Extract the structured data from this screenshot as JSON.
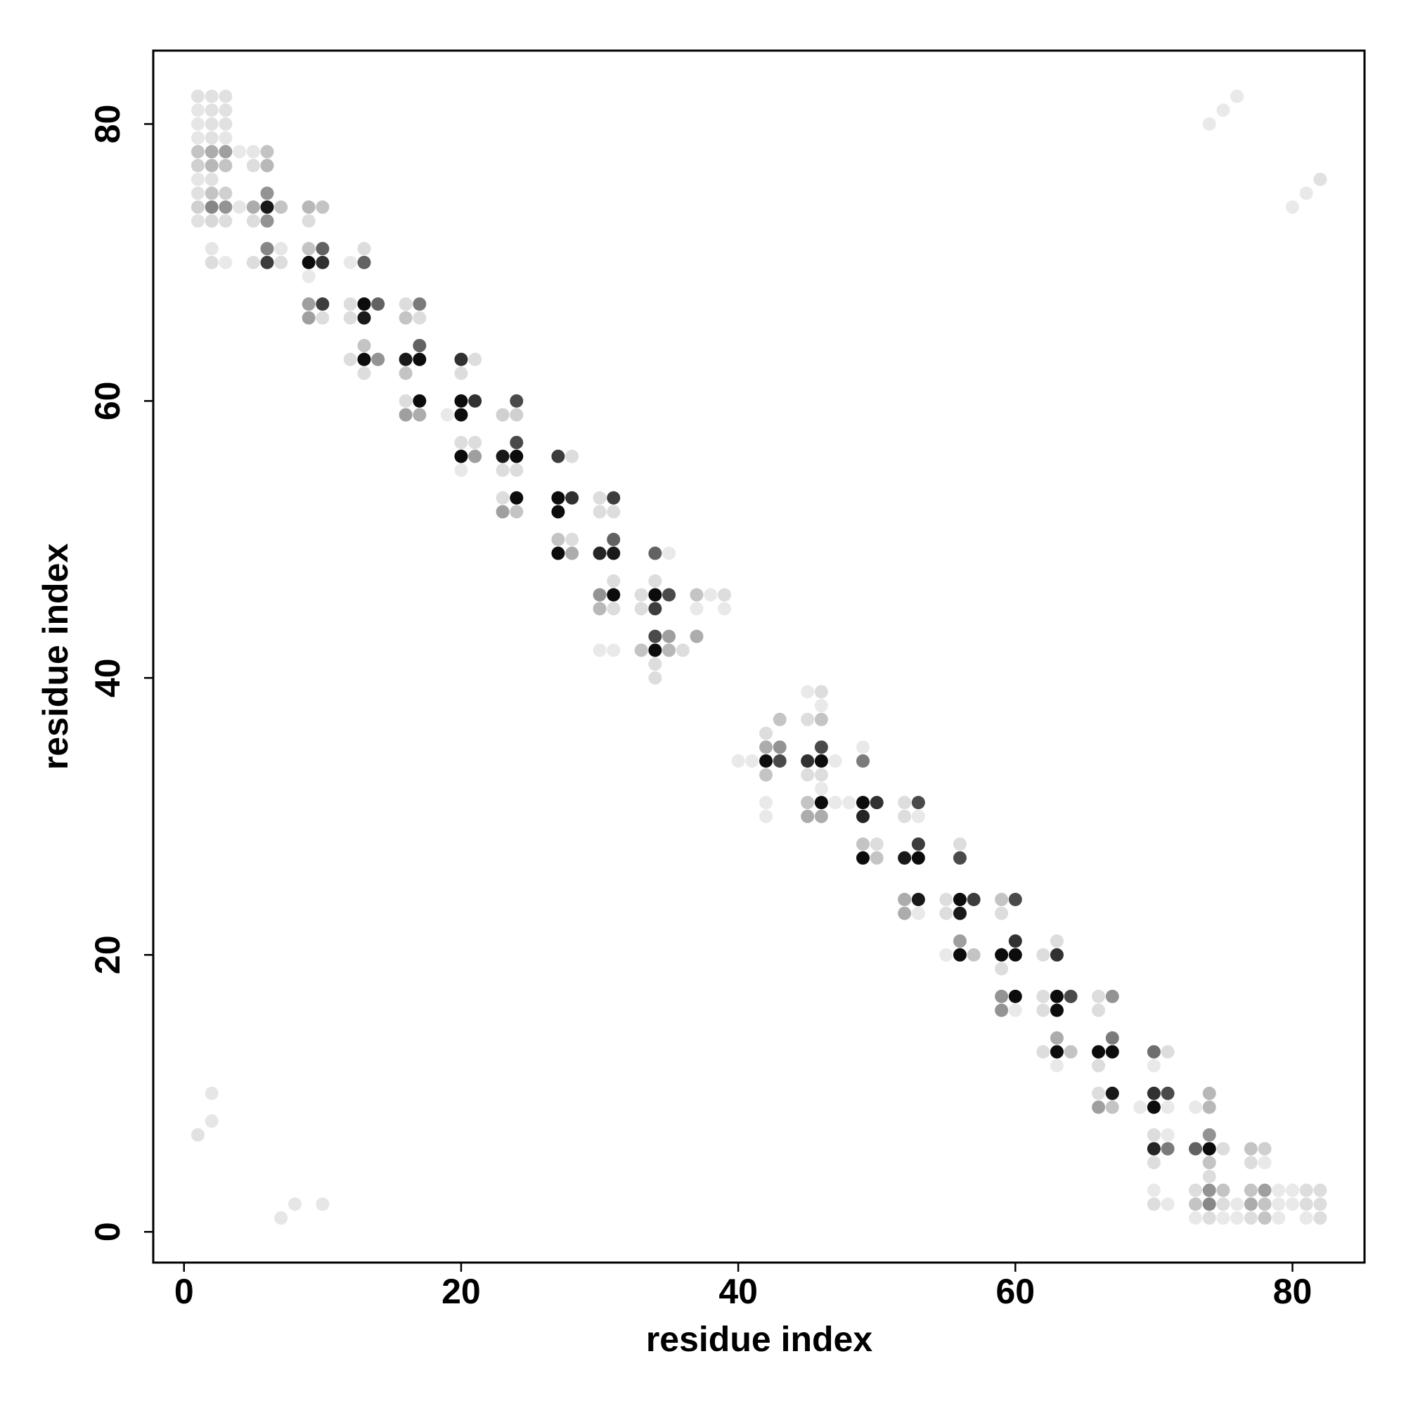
{
  "chart_data": {
    "type": "scatter",
    "xlabel": "residue index",
    "ylabel": "residue index",
    "xlim": [
      -2.22,
      85.2
    ],
    "ylim": [
      -2.22,
      85.3
    ],
    "xticks": [
      0,
      20,
      40,
      60,
      80
    ],
    "yticks": [
      0,
      20,
      40,
      60,
      80
    ],
    "color_scale": [
      "#f5f5f5",
      "#000000"
    ],
    "x": [
      1,
      1,
      1,
      1,
      1,
      1,
      1,
      1,
      1,
      1,
      1,
      2,
      2,
      2,
      2,
      2,
      2,
      2,
      2,
      2,
      2,
      2,
      2,
      2,
      2,
      3,
      3,
      3,
      3,
      3,
      3,
      3,
      3,
      3,
      3,
      4,
      4,
      5,
      5,
      5,
      5,
      5,
      6,
      6,
      6,
      6,
      6,
      6,
      6,
      7,
      7,
      7,
      7,
      8,
      9,
      9,
      9,
      9,
      9,
      9,
      9,
      10,
      10,
      10,
      10,
      10,
      10,
      12,
      12,
      12,
      12,
      13,
      13,
      13,
      13,
      13,
      13,
      13,
      14,
      14,
      16,
      16,
      16,
      16,
      16,
      16,
      17,
      17,
      17,
      17,
      17,
      17,
      19,
      20,
      20,
      20,
      20,
      20,
      20,
      20,
      21,
      21,
      21,
      21,
      23,
      23,
      23,
      23,
      23,
      24,
      24,
      24,
      24,
      24,
      24,
      24,
      27,
      27,
      27,
      27,
      27,
      28,
      28,
      28,
      28,
      30,
      30,
      30,
      30,
      30,
      30,
      31,
      31,
      31,
      31,
      31,
      31,
      31,
      31,
      33,
      33,
      33,
      34,
      34,
      34,
      34,
      34,
      34,
      34,
      34,
      35,
      35,
      35,
      35,
      36,
      37,
      37,
      37,
      38,
      39,
      39,
      40,
      41,
      42,
      42,
      42,
      42,
      42,
      42,
      43,
      43,
      43,
      45,
      45,
      45,
      45,
      45,
      45,
      46,
      46,
      46,
      46,
      46,
      46,
      46,
      46,
      46,
      47,
      47,
      48,
      49,
      49,
      49,
      49,
      49,
      49,
      50,
      50,
      50,
      52,
      52,
      52,
      52,
      52,
      53,
      53,
      53,
      53,
      53,
      53,
      55,
      55,
      55,
      56,
      56,
      56,
      56,
      56,
      56,
      57,
      57,
      59,
      59,
      59,
      59,
      59,
      59,
      60,
      60,
      60,
      60,
      60,
      62,
      62,
      62,
      62,
      63,
      63,
      63,
      63,
      63,
      63,
      63,
      64,
      64,
      66,
      66,
      66,
      66,
      66,
      66,
      67,
      67,
      67,
      67,
      67,
      69,
      70,
      70,
      70,
      70,
      70,
      70,
      70,
      70,
      70,
      71,
      71,
      71,
      71,
      71,
      71,
      73,
      73,
      73,
      73,
      73,
      74,
      74,
      74,
      74,
      74,
      74,
      74,
      74,
      74,
      74,
      75,
      75,
      75,
      75,
      75,
      76,
      76,
      76,
      77,
      77,
      77,
      77,
      77,
      78,
      78,
      78,
      78,
      78,
      79,
      79,
      79,
      80,
      80,
      80,
      81,
      81,
      81,
      81,
      82,
      82,
      82,
      82
    ],
    "y": [
      82,
      81,
      80,
      79,
      78,
      77,
      76,
      75,
      74,
      73,
      7,
      82,
      81,
      80,
      79,
      78,
      77,
      76,
      75,
      74,
      73,
      71,
      70,
      10,
      8,
      82,
      81,
      80,
      79,
      78,
      77,
      75,
      74,
      73,
      70,
      78,
      74,
      78,
      77,
      74,
      73,
      70,
      78,
      77,
      75,
      74,
      73,
      71,
      70,
      74,
      71,
      70,
      1,
      2,
      74,
      73,
      71,
      70,
      69,
      67,
      66,
      74,
      71,
      70,
      67,
      66,
      2,
      70,
      67,
      66,
      63,
      71,
      70,
      67,
      66,
      64,
      63,
      62,
      67,
      63,
      67,
      66,
      63,
      62,
      60,
      59,
      67,
      66,
      64,
      63,
      60,
      59,
      59,
      63,
      62,
      60,
      59,
      57,
      56,
      55,
      63,
      60,
      57,
      56,
      59,
      56,
      55,
      53,
      52,
      60,
      59,
      57,
      56,
      55,
      53,
      52,
      56,
      53,
      52,
      50,
      49,
      56,
      53,
      50,
      49,
      53,
      52,
      49,
      46,
      45,
      42,
      53,
      52,
      50,
      49,
      47,
      46,
      45,
      42,
      46,
      45,
      42,
      49,
      47,
      46,
      45,
      43,
      42,
      41,
      40,
      49,
      46,
      43,
      42,
      42,
      46,
      45,
      43,
      46,
      46,
      45,
      34,
      34,
      36,
      35,
      34,
      33,
      31,
      30,
      37,
      35,
      34,
      39,
      37,
      34,
      33,
      31,
      30,
      39,
      38,
      37,
      35,
      34,
      33,
      32,
      31,
      30,
      34,
      31,
      31,
      35,
      34,
      31,
      30,
      28,
      27,
      31,
      28,
      27,
      31,
      30,
      27,
      24,
      23,
      31,
      30,
      28,
      27,
      24,
      23,
      24,
      23,
      20,
      28,
      27,
      24,
      23,
      21,
      20,
      24,
      20,
      24,
      23,
      20,
      19,
      17,
      16,
      24,
      21,
      20,
      17,
      16,
      20,
      17,
      16,
      13,
      21,
      20,
      17,
      16,
      14,
      13,
      12,
      17,
      13,
      17,
      16,
      13,
      12,
      10,
      9,
      17,
      14,
      13,
      10,
      9,
      9,
      13,
      12,
      10,
      9,
      7,
      6,
      5,
      3,
      2,
      13,
      10,
      9,
      7,
      6,
      2,
      9,
      6,
      3,
      2,
      1,
      80,
      10,
      9,
      7,
      6,
      5,
      4,
      3,
      2,
      1,
      81,
      6,
      3,
      2,
      1,
      82,
      2,
      1,
      6,
      5,
      3,
      2,
      1,
      6,
      5,
      3,
      2,
      1,
      3,
      2,
      1,
      74,
      3,
      2,
      75,
      3,
      2,
      1,
      76,
      3,
      2,
      1
    ],
    "values": [
      0.08,
      0.06,
      0.06,
      0.06,
      0.2,
      0.15,
      0.06,
      0.08,
      0.15,
      0.08,
      0.08,
      0.08,
      0.08,
      0.08,
      0.08,
      0.3,
      0.25,
      0.08,
      0.2,
      0.45,
      0.12,
      0.06,
      0.1,
      0.06,
      0.06,
      0.08,
      0.08,
      0.08,
      0.06,
      0.35,
      0.2,
      0.15,
      0.4,
      0.1,
      0.05,
      0.05,
      0.06,
      0.06,
      0.1,
      0.3,
      0.1,
      0.1,
      0.2,
      0.25,
      0.4,
      0.9,
      0.4,
      0.45,
      0.75,
      0.2,
      0.06,
      0.1,
      0.06,
      0.06,
      0.25,
      0.1,
      0.2,
      0.95,
      0.05,
      0.35,
      0.35,
      0.2,
      0.6,
      0.8,
      0.75,
      0.1,
      0.06,
      0.05,
      0.1,
      0.1,
      0.1,
      0.1,
      0.6,
      0.95,
      0.9,
      0.2,
      0.95,
      0.1,
      0.6,
      0.4,
      0.1,
      0.2,
      0.9,
      0.2,
      0.1,
      0.35,
      0.5,
      0.1,
      0.6,
      0.95,
      0.95,
      0.3,
      0.05,
      0.8,
      0.1,
      0.95,
      0.95,
      0.1,
      0.95,
      0.05,
      0.1,
      0.8,
      0.1,
      0.35,
      0.15,
      0.9,
      0.1,
      0.1,
      0.35,
      0.7,
      0.15,
      0.7,
      0.95,
      0.1,
      0.95,
      0.2,
      0.75,
      0.95,
      0.95,
      0.2,
      0.95,
      0.1,
      0.8,
      0.1,
      0.3,
      0.1,
      0.1,
      0.85,
      0.4,
      0.25,
      0.05,
      0.75,
      0.1,
      0.6,
      0.9,
      0.1,
      0.95,
      0.1,
      0.05,
      0.1,
      0.1,
      0.2,
      0.6,
      0.1,
      0.95,
      0.75,
      0.7,
      0.95,
      0.1,
      0.1,
      0.05,
      0.7,
      0.35,
      0.25,
      0.1,
      0.2,
      0.05,
      0.3,
      0.05,
      0.1,
      0.05,
      0.05,
      0.05,
      0.1,
      0.3,
      0.95,
      0.2,
      0.05,
      0.05,
      0.2,
      0.4,
      0.7,
      0.05,
      0.1,
      0.8,
      0.1,
      0.2,
      0.3,
      0.1,
      0.05,
      0.2,
      0.7,
      0.95,
      0.1,
      0.05,
      0.95,
      0.3,
      0.05,
      0.05,
      0.05,
      0.05,
      0.5,
      0.95,
      0.85,
      0.2,
      0.95,
      0.8,
      0.1,
      0.2,
      0.1,
      0.1,
      0.9,
      0.3,
      0.3,
      0.7,
      0.05,
      0.75,
      0.95,
      0.9,
      0.05,
      0.1,
      0.1,
      0.05,
      0.1,
      0.7,
      0.95,
      0.9,
      0.35,
      0.95,
      0.75,
      0.2,
      0.2,
      0.1,
      0.95,
      0.1,
      0.4,
      0.4,
      0.7,
      0.8,
      0.95,
      0.95,
      0.05,
      0.1,
      0.1,
      0.1,
      0.1,
      0.1,
      0.8,
      0.95,
      0.95,
      0.3,
      0.95,
      0.05,
      0.7,
      0.2,
      0.1,
      0.1,
      0.95,
      0.1,
      0.1,
      0.35,
      0.4,
      0.5,
      0.95,
      0.9,
      0.2,
      0.05,
      0.55,
      0.05,
      0.8,
      0.95,
      0.1,
      0.85,
      0.1,
      0.05,
      0.1,
      0.1,
      0.7,
      0.05,
      0.05,
      0.5,
      0.05,
      0.05,
      0.6,
      0.1,
      0.2,
      0.05,
      0.05,
      0.25,
      0.25,
      0.4,
      0.95,
      0.2,
      0.1,
      0.4,
      0.45,
      0.1,
      0.05,
      0.1,
      0.2,
      0.1,
      0.05,
      0.05,
      0.05,
      0.05,
      0.2,
      0.1,
      0.2,
      0.3,
      0.1,
      0.15,
      0.05,
      0.35,
      0.2,
      0.2,
      0.05,
      0.05,
      0.05,
      0.05,
      0.05,
      0.05,
      0.05,
      0.1,
      0.1,
      0.05,
      0.08,
      0.1,
      0.1,
      0.1
    ]
  }
}
